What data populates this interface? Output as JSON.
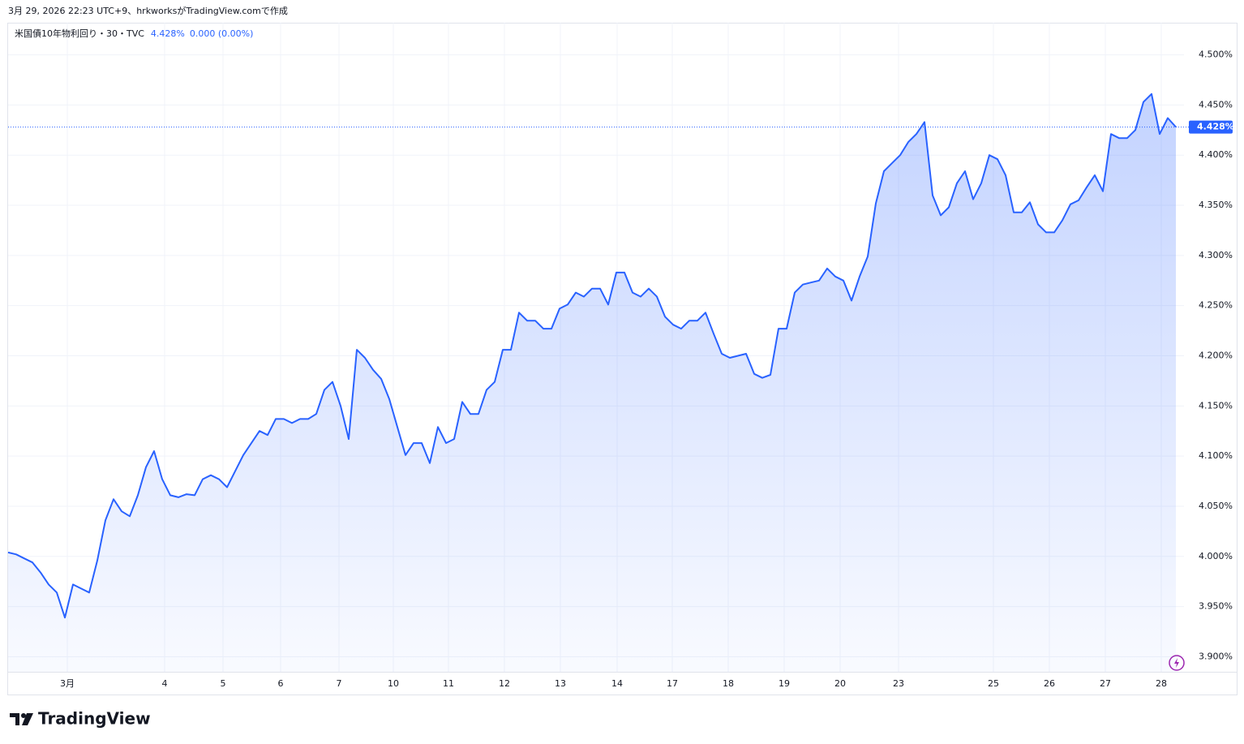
{
  "chart_data": {
    "type": "area",
    "caption": "3月 29, 2026 22:23 UTC+9、hrkworksがTradingView.comで作成",
    "legend": {
      "price": "4.428%",
      "change": "0.000 (0.00%)"
    },
    "brand": "TradingView",
    "series": [
      {
        "name": "米国債10年物利回り・30・TVC",
        "color": "#2962ff",
        "values": [
          4.004,
          4.002,
          3.998,
          3.994,
          3.984,
          3.972,
          3.964,
          3.939,
          3.972,
          3.968,
          3.964,
          3.996,
          4.036,
          4.057,
          4.045,
          4.04,
          4.061,
          4.089,
          4.105,
          4.077,
          4.061,
          4.059,
          4.062,
          4.061,
          4.077,
          4.081,
          4.077,
          4.069,
          4.085,
          4.101,
          4.113,
          4.125,
          4.121,
          4.137,
          4.137,
          4.133,
          4.137,
          4.137,
          4.142,
          4.166,
          4.174,
          4.15,
          4.117,
          4.206,
          4.198,
          4.186,
          4.177,
          4.157,
          4.129,
          4.101,
          4.113,
          4.113,
          4.093,
          4.129,
          4.113,
          4.117,
          4.154,
          4.142,
          4.142,
          4.166,
          4.174,
          4.206,
          4.206,
          4.243,
          4.235,
          4.235,
          4.227,
          4.227,
          4.247,
          4.251,
          4.263,
          4.259,
          4.267,
          4.267,
          4.251,
          4.283,
          4.283,
          4.263,
          4.259,
          4.267,
          4.259,
          4.239,
          4.231,
          4.227,
          4.235,
          4.235,
          4.243,
          4.222,
          4.202,
          4.198,
          4.2,
          4.202,
          4.182,
          4.178,
          4.181,
          4.227,
          4.227,
          4.263,
          4.271,
          4.273,
          4.275,
          4.287,
          4.279,
          4.275,
          4.255,
          4.279,
          4.299,
          4.352,
          4.384,
          4.392,
          4.4,
          4.413,
          4.421,
          4.433,
          4.36,
          4.34,
          4.348,
          4.372,
          4.384,
          4.356,
          4.372,
          4.4,
          4.396,
          4.38,
          4.343,
          4.343,
          4.353,
          4.331,
          4.323,
          4.323,
          4.335,
          4.351,
          4.355,
          4.368,
          4.38,
          4.364,
          4.421,
          4.417,
          4.417,
          4.425,
          4.453,
          4.461,
          4.421,
          4.437,
          4.428
        ]
      }
    ],
    "last_price": {
      "value": 4.428,
      "label": "4.428%"
    },
    "xlim": [
      0,
      144
    ],
    "xticks": [
      {
        "value": 7.3,
        "label": "3月"
      },
      {
        "value": 19.3,
        "label": "4"
      },
      {
        "value": 26.5,
        "label": "5"
      },
      {
        "value": 33.6,
        "label": "6"
      },
      {
        "value": 40.8,
        "label": "7"
      },
      {
        "value": 47.5,
        "label": "10"
      },
      {
        "value": 54.3,
        "label": "11"
      },
      {
        "value": 61.2,
        "label": "12"
      },
      {
        "value": 68.1,
        "label": "13"
      },
      {
        "value": 75.1,
        "label": "14"
      },
      {
        "value": 81.9,
        "label": "17"
      },
      {
        "value": 88.8,
        "label": "18"
      },
      {
        "value": 95.7,
        "label": "19"
      },
      {
        "value": 102.6,
        "label": "20"
      },
      {
        "value": 109.8,
        "label": "23"
      },
      {
        "value": 121.5,
        "label": "25"
      },
      {
        "value": 128.4,
        "label": "26"
      },
      {
        "value": 135.3,
        "label": "27"
      },
      {
        "value": 142.2,
        "label": "28"
      }
    ],
    "ylim": [
      3.885,
      4.532
    ],
    "yticks": [
      {
        "value": 3.9,
        "label": "3.900%"
      },
      {
        "value": 3.95,
        "label": "3.950%"
      },
      {
        "value": 4.0,
        "label": "4.000%"
      },
      {
        "value": 4.05,
        "label": "4.050%"
      },
      {
        "value": 4.1,
        "label": "4.100%"
      },
      {
        "value": 4.15,
        "label": "4.150%"
      },
      {
        "value": 4.2,
        "label": "4.200%"
      },
      {
        "value": 4.25,
        "label": "4.250%"
      },
      {
        "value": 4.3,
        "label": "4.300%"
      },
      {
        "value": 4.35,
        "label": "4.350%"
      },
      {
        "value": 4.4,
        "label": "4.400%"
      },
      {
        "value": 4.45,
        "label": "4.450%"
      },
      {
        "value": 4.5,
        "label": "4.500%"
      }
    ],
    "grid": true
  }
}
